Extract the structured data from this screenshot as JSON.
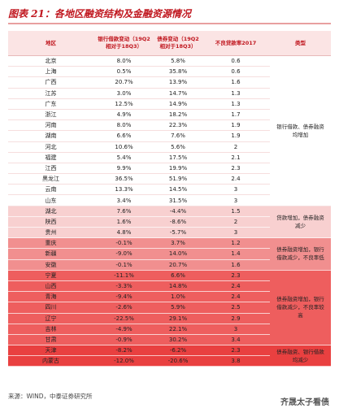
{
  "title": "图表 21：各地区融资结构及金融资源情况",
  "table": {
    "header": [
      "地区",
      "银行借款变动（19Q2相对于18Q3）",
      "债券变动（19Q2相对于18Q3）",
      "不良贷款率2017",
      "类型"
    ],
    "groups": [
      {
        "type": "银行借款、债券融资均增加",
        "rows": [
          [
            "北京",
            "8.0%",
            "5.8%",
            "0.6"
          ],
          [
            "上海",
            "0.5%",
            "35.8%",
            "0.6"
          ],
          [
            "广西",
            "20.7%",
            "13.9%",
            "1.6"
          ],
          [
            "江苏",
            "3.0%",
            "14.7%",
            "1.3"
          ],
          [
            "广东",
            "12.5%",
            "14.9%",
            "1.3"
          ],
          [
            "浙江",
            "4.9%",
            "18.2%",
            "1.7"
          ],
          [
            "河南",
            "8.0%",
            "22.3%",
            "1.9"
          ],
          [
            "湖南",
            "6.6%",
            "7.6%",
            "1.9"
          ],
          [
            "河北",
            "10.6%",
            "5.6%",
            "2"
          ],
          [
            "福建",
            "5.4%",
            "17.5%",
            "2.1"
          ],
          [
            "江西",
            "9.9%",
            "19.9%",
            "2.3"
          ],
          [
            "黑龙江",
            "36.5%",
            "51.9%",
            "2.4"
          ],
          [
            "云南",
            "13.3%",
            "14.5%",
            "3"
          ],
          [
            "山东",
            "3.4%",
            "31.5%",
            "3"
          ]
        ]
      },
      {
        "type": "贷款增加，债券融资减少",
        "rows": [
          [
            "湖北",
            "7.6%",
            "-4.4%",
            "1.5"
          ],
          [
            "陕西",
            "1.6%",
            "-8.6%",
            "2"
          ],
          [
            "贵州",
            "4.8%",
            "-5.7%",
            "3"
          ]
        ]
      },
      {
        "type": "债券融资增加，银行借款减少，不良率低",
        "rows": [
          [
            "重庆",
            "-0.1%",
            "3.7%",
            "1.2"
          ],
          [
            "新疆",
            "-9.0%",
            "14.0%",
            "1.4"
          ],
          [
            "安徽",
            "-0.1%",
            "20.7%",
            "1.6"
          ]
        ]
      },
      {
        "type": "债券融资增加，银行借款减少，不良率较高",
        "rows": [
          [
            "宁夏",
            "-11.1%",
            "6.6%",
            "2.3"
          ],
          [
            "山西",
            "-3.3%",
            "14.8%",
            "2.4"
          ],
          [
            "青海",
            "-9.4%",
            "1.0%",
            "2.4"
          ],
          [
            "四川",
            "-2.6%",
            "5.9%",
            "2.5"
          ],
          [
            "辽宁",
            "-22.5%",
            "29.1%",
            "2.9"
          ],
          [
            "吉林",
            "-4.9%",
            "22.1%",
            "3"
          ],
          [
            "甘肃",
            "-0.9%",
            "30.2%",
            "3.4"
          ]
        ]
      },
      {
        "type": "债券融资、银行借款均减少",
        "rows": [
          [
            "天津",
            "-8.2%",
            "-6.2%",
            "2.3"
          ],
          [
            "内蒙古",
            "-12.0%",
            "-20.6%",
            "3.8"
          ]
        ]
      }
    ]
  },
  "source": "来源：WIND，中泰证券研究所",
  "watermark": "齐晟太子看债"
}
